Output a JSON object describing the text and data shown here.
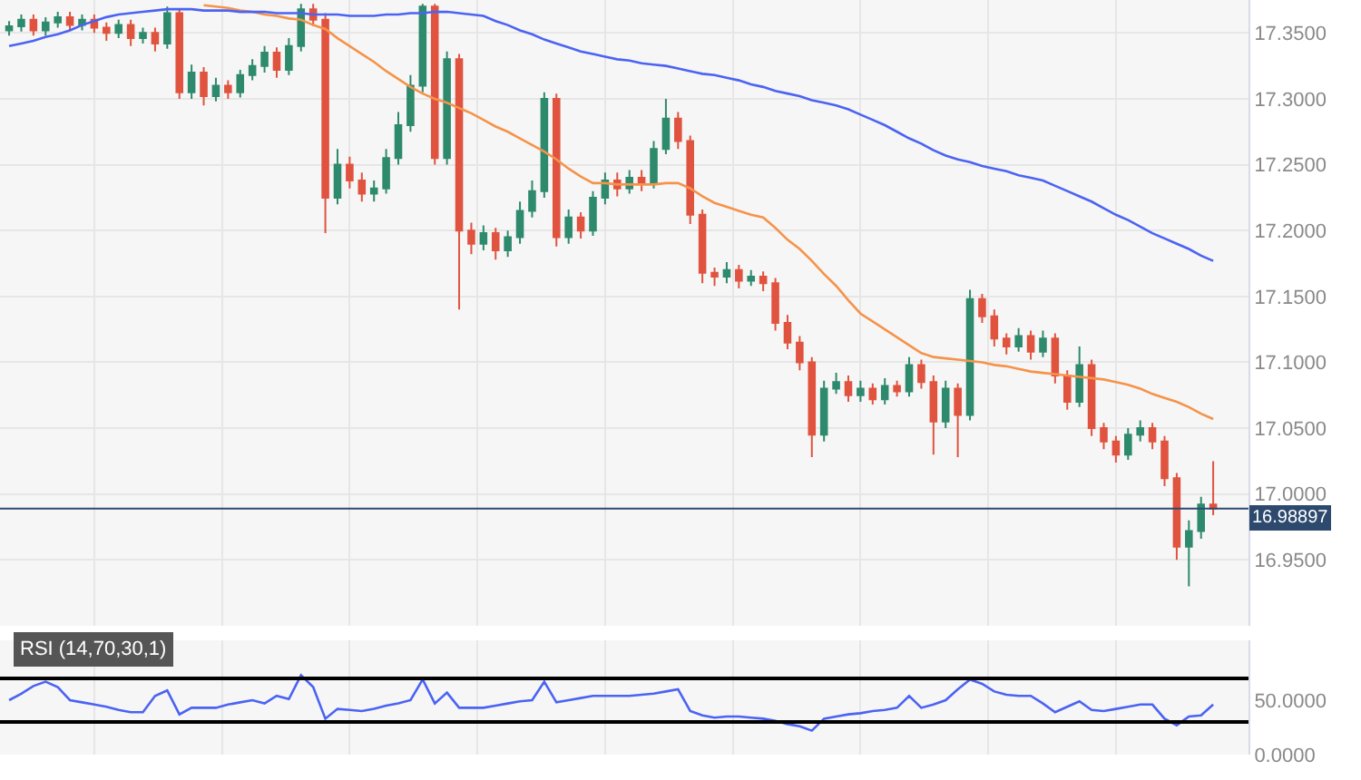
{
  "chart_data": [
    {
      "type": "candlestick",
      "categories": [
        null,
        null,
        null,
        null,
        null,
        null,
        null,
        null,
        null,
        null,
        null,
        null,
        null,
        null,
        null,
        null,
        null,
        null,
        null,
        null,
        null,
        null,
        null,
        null,
        null,
        null,
        null,
        null,
        null,
        null,
        null,
        null,
        null,
        null,
        null,
        null,
        null,
        null,
        null,
        null,
        null,
        null,
        null,
        null,
        null,
        null,
        null,
        null,
        null,
        null,
        null,
        null,
        null,
        null,
        null,
        null,
        null,
        null,
        null,
        null,
        null,
        null,
        null,
        null,
        null,
        null,
        null,
        null,
        null,
        null,
        null,
        null,
        null,
        null,
        null,
        null,
        null,
        null,
        null,
        null,
        null,
        null,
        null,
        null,
        null,
        null,
        null,
        null,
        null,
        null,
        null,
        null,
        null,
        null,
        null,
        null,
        null,
        null,
        null,
        null
      ],
      "ohlc": [
        [
          17.352,
          17.359,
          17.348,
          17.355
        ],
        [
          17.355,
          17.364,
          17.351,
          17.36
        ],
        [
          17.36,
          17.364,
          17.348,
          17.352
        ],
        [
          17.352,
          17.362,
          17.348,
          17.358
        ],
        [
          17.358,
          17.366,
          17.354,
          17.362
        ],
        [
          17.362,
          17.366,
          17.352,
          17.356
        ],
        [
          17.356,
          17.364,
          17.352,
          17.36
        ],
        [
          17.36,
          17.364,
          17.35,
          17.354
        ],
        [
          17.354,
          17.358,
          17.344,
          17.35
        ],
        [
          17.35,
          17.36,
          17.346,
          17.356
        ],
        [
          17.356,
          17.36,
          17.34,
          17.346
        ],
        [
          17.346,
          17.354,
          17.342,
          17.35
        ],
        [
          17.35,
          17.354,
          17.336,
          17.342
        ],
        [
          17.342,
          17.37,
          17.338,
          17.365
        ],
        [
          17.365,
          17.368,
          17.3,
          17.305
        ],
        [
          17.305,
          17.326,
          17.3,
          17.32
        ],
        [
          17.32,
          17.324,
          17.295,
          17.302
        ],
        [
          17.302,
          17.316,
          17.298,
          17.31
        ],
        [
          17.31,
          17.314,
          17.3,
          17.305
        ],
        [
          17.305,
          17.322,
          17.301,
          17.318
        ],
        [
          17.318,
          17.33,
          17.314,
          17.325
        ],
        [
          17.325,
          17.34,
          17.32,
          17.335
        ],
        [
          17.335,
          17.339,
          17.316,
          17.322
        ],
        [
          17.322,
          17.346,
          17.318,
          17.34
        ],
        [
          17.34,
          17.372,
          17.336,
          17.368
        ],
        [
          17.368,
          17.372,
          17.355,
          17.36
        ],
        [
          17.36,
          17.365,
          17.198,
          17.225
        ],
        [
          17.225,
          17.262,
          17.22,
          17.25
        ],
        [
          17.25,
          17.256,
          17.232,
          17.238
        ],
        [
          17.238,
          17.244,
          17.222,
          17.228
        ],
        [
          17.228,
          17.238,
          17.222,
          17.232
        ],
        [
          17.232,
          17.262,
          17.228,
          17.255
        ],
        [
          17.255,
          17.29,
          17.25,
          17.28
        ],
        [
          17.28,
          17.318,
          17.275,
          17.31
        ],
        [
          17.31,
          17.372,
          17.305,
          17.37
        ],
        [
          17.37,
          17.372,
          17.25,
          17.255
        ],
        [
          17.255,
          17.336,
          17.25,
          17.33
        ],
        [
          17.33,
          17.334,
          17.14,
          17.2
        ],
        [
          17.2,
          17.206,
          17.182,
          17.19
        ],
        [
          17.19,
          17.204,
          17.185,
          17.198
        ],
        [
          17.198,
          17.202,
          17.178,
          17.185
        ],
        [
          17.185,
          17.2,
          17.18,
          17.195
        ],
        [
          17.195,
          17.222,
          17.19,
          17.215
        ],
        [
          17.215,
          17.238,
          17.21,
          17.23
        ],
        [
          17.23,
          17.305,
          17.225,
          17.3
        ],
        [
          17.3,
          17.304,
          17.188,
          17.195
        ],
        [
          17.195,
          17.216,
          17.19,
          17.21
        ],
        [
          17.21,
          17.214,
          17.194,
          17.2
        ],
        [
          17.2,
          17.23,
          17.196,
          17.225
        ],
        [
          17.225,
          17.244,
          17.22,
          17.238
        ],
        [
          17.238,
          17.244,
          17.226,
          17.232
        ],
        [
          17.232,
          17.246,
          17.228,
          17.24
        ],
        [
          17.24,
          17.246,
          17.23,
          17.236
        ],
        [
          17.236,
          17.268,
          17.232,
          17.262
        ],
        [
          17.262,
          17.3,
          17.258,
          17.285
        ],
        [
          17.285,
          17.29,
          17.262,
          17.268
        ],
        [
          17.268,
          17.272,
          17.205,
          17.212
        ],
        [
          17.212,
          17.216,
          17.16,
          17.168
        ],
        [
          17.168,
          17.172,
          17.158,
          17.165
        ],
        [
          17.165,
          17.176,
          17.16,
          17.17
        ],
        [
          17.17,
          17.174,
          17.156,
          17.162
        ],
        [
          17.162,
          17.17,
          17.158,
          17.165
        ],
        [
          17.165,
          17.169,
          17.154,
          17.16
        ],
        [
          17.16,
          17.164,
          17.124,
          17.13
        ],
        [
          17.13,
          17.136,
          17.11,
          17.115
        ],
        [
          17.115,
          17.12,
          17.094,
          17.1
        ],
        [
          17.1,
          17.104,
          17.028,
          17.045
        ],
        [
          17.045,
          17.086,
          17.04,
          17.08
        ],
        [
          17.08,
          17.092,
          17.076,
          17.085
        ],
        [
          17.085,
          17.09,
          17.07,
          17.075
        ],
        [
          17.075,
          17.086,
          17.07,
          17.08
        ],
        [
          17.08,
          17.084,
          17.068,
          17.072
        ],
        [
          17.072,
          17.088,
          17.068,
          17.082
        ],
        [
          17.082,
          17.086,
          17.074,
          17.078
        ],
        [
          17.078,
          17.104,
          17.074,
          17.098
        ],
        [
          17.098,
          17.102,
          17.08,
          17.085
        ],
        [
          17.085,
          17.09,
          17.03,
          17.055
        ],
        [
          17.055,
          17.086,
          17.05,
          17.08
        ],
        [
          17.08,
          17.084,
          17.028,
          17.06
        ],
        [
          17.06,
          17.155,
          17.056,
          17.148
        ],
        [
          17.148,
          17.152,
          17.13,
          17.135
        ],
        [
          17.135,
          17.14,
          17.112,
          17.118
        ],
        [
          17.118,
          17.122,
          17.106,
          17.112
        ],
        [
          17.112,
          17.126,
          17.108,
          17.12
        ],
        [
          17.12,
          17.124,
          17.102,
          17.108
        ],
        [
          17.108,
          17.124,
          17.104,
          17.118
        ],
        [
          17.118,
          17.122,
          17.084,
          17.09
        ],
        [
          17.09,
          17.094,
          17.064,
          17.07
        ],
        [
          17.07,
          17.112,
          17.066,
          17.098
        ],
        [
          17.098,
          17.102,
          17.044,
          17.05
        ],
        [
          17.05,
          17.054,
          17.034,
          17.04
        ],
        [
          17.04,
          17.044,
          17.024,
          17.03
        ],
        [
          17.03,
          17.05,
          17.026,
          17.045
        ],
        [
          17.045,
          17.056,
          17.04,
          17.05
        ],
        [
          17.05,
          17.054,
          17.034,
          17.04
        ],
        [
          17.04,
          17.044,
          17.006,
          17.012
        ],
        [
          17.012,
          17.016,
          16.95,
          16.96
        ],
        [
          16.96,
          16.98,
          16.93,
          16.972
        ],
        [
          16.972,
          16.998,
          16.966,
          16.992
        ],
        [
          16.992,
          17.025,
          16.984,
          16.989
        ]
      ],
      "series": [
        {
          "type": "line",
          "color": "#f5934a",
          "values": [
            null,
            null,
            null,
            null,
            null,
            null,
            null,
            null,
            null,
            null,
            null,
            null,
            null,
            null,
            null,
            null,
            17.371,
            17.37,
            17.369,
            17.367,
            17.366,
            17.364,
            17.363,
            17.361,
            17.36,
            17.356,
            17.353,
            17.346,
            17.34,
            17.334,
            17.328,
            17.321,
            17.315,
            17.309,
            17.304,
            17.3,
            17.297,
            17.293,
            17.289,
            17.284,
            17.279,
            17.275,
            17.27,
            17.265,
            17.26,
            17.254,
            17.247,
            17.241,
            17.236,
            17.236,
            17.235,
            17.235,
            17.235,
            17.235,
            17.236,
            17.236,
            17.232,
            17.226,
            17.221,
            17.218,
            17.215,
            17.212,
            17.21,
            17.202,
            17.193,
            17.186,
            17.177,
            17.167,
            17.158,
            17.147,
            17.137,
            17.131,
            17.125,
            17.119,
            17.113,
            17.107,
            17.104,
            17.103,
            17.102,
            17.101,
            17.1,
            17.098,
            17.097,
            17.095,
            17.093,
            17.092,
            17.091,
            17.09,
            17.089,
            17.088,
            17.087,
            17.085,
            17.083,
            17.08,
            17.076,
            17.073,
            17.07,
            17.066,
            17.061,
            17.057
          ]
        },
        {
          "type": "line",
          "color": "#4b63f2",
          "values": [
            17.34,
            17.342,
            17.344,
            17.347,
            17.349,
            17.352,
            17.356,
            17.359,
            17.362,
            17.364,
            17.365,
            17.366,
            17.367,
            17.368,
            17.368,
            17.368,
            17.367,
            17.367,
            17.367,
            17.366,
            17.366,
            17.366,
            17.365,
            17.365,
            17.365,
            17.364,
            17.364,
            17.364,
            17.363,
            17.363,
            17.363,
            17.364,
            17.364,
            17.365,
            17.365,
            17.366,
            17.366,
            17.365,
            17.364,
            17.363,
            17.359,
            17.356,
            17.352,
            17.349,
            17.345,
            17.342,
            17.339,
            17.336,
            17.334,
            17.332,
            17.33,
            17.329,
            17.327,
            17.326,
            17.325,
            17.323,
            17.321,
            17.319,
            17.318,
            17.316,
            17.314,
            17.311,
            17.309,
            17.306,
            17.304,
            17.302,
            17.299,
            17.297,
            17.295,
            17.292,
            17.288,
            17.284,
            17.28,
            17.275,
            17.27,
            17.266,
            17.261,
            17.257,
            17.254,
            17.252,
            17.249,
            17.247,
            17.245,
            17.242,
            17.24,
            17.238,
            17.234,
            17.23,
            17.226,
            17.222,
            17.217,
            17.212,
            17.208,
            17.203,
            17.198,
            17.194,
            17.19,
            17.186,
            17.181,
            17.177
          ]
        }
      ],
      "ylim": [
        16.9,
        17.375
      ],
      "yticks": [
        {
          "value": 16.95,
          "label": "16.9500"
        },
        {
          "value": 17.0,
          "label": "17.0000"
        },
        {
          "value": 17.05,
          "label": "17.0500"
        },
        {
          "value": 17.1,
          "label": "17.1000"
        },
        {
          "value": 17.15,
          "label": "17.1500"
        },
        {
          "value": 17.2,
          "label": "17.2000"
        },
        {
          "value": 17.25,
          "label": "17.2500"
        },
        {
          "value": 17.3,
          "label": "17.3000"
        },
        {
          "value": 17.35,
          "label": "17.3500"
        }
      ],
      "ref_lines": [
        {
          "axis": "y",
          "value": 16.98897,
          "label": "16.98897",
          "color": "#2d4a6e"
        }
      ],
      "grid": true,
      "tick_labels": "y"
    },
    {
      "type": "line",
      "title": "RSI (14,70,30,1)",
      "categories": [
        null,
        null,
        null,
        null,
        null,
        null,
        null,
        null,
        null,
        null,
        null,
        null,
        null,
        null,
        null,
        null,
        null,
        null,
        null,
        null,
        null,
        null,
        null,
        null,
        null,
        null,
        null,
        null,
        null,
        null,
        null,
        null,
        null,
        null,
        null,
        null,
        null,
        null,
        null,
        null,
        null,
        null,
        null,
        null,
        null,
        null,
        null,
        null,
        null,
        null,
        null,
        null,
        null,
        null,
        null,
        null,
        null,
        null,
        null,
        null,
        null,
        null,
        null,
        null,
        null,
        null,
        null,
        null,
        null,
        null,
        null,
        null,
        null,
        null,
        null,
        null,
        null,
        null,
        null,
        null,
        null,
        null,
        null,
        null,
        null,
        null,
        null,
        null,
        null,
        null,
        null,
        null,
        null,
        null,
        null,
        null,
        null,
        null,
        null,
        null
      ],
      "series": [
        {
          "color": "#4b63f2",
          "values": [
            50,
            56,
            63,
            67,
            62,
            50,
            48,
            46,
            44,
            41,
            39,
            39,
            54,
            59,
            37,
            43,
            43,
            43,
            46,
            48,
            50,
            47,
            54,
            51,
            73,
            62,
            33,
            42,
            41,
            40,
            42,
            45,
            47,
            50,
            69,
            47,
            57,
            43,
            43,
            43,
            45,
            47,
            49,
            50,
            67,
            48,
            50,
            52,
            54,
            54,
            54,
            54,
            55,
            56,
            58,
            60,
            40,
            36,
            34,
            35,
            35,
            34,
            33,
            31,
            28,
            26,
            22,
            33,
            35,
            37,
            38,
            40,
            41,
            43,
            54,
            43,
            46,
            50,
            60,
            69,
            65,
            58,
            55,
            54,
            54,
            47,
            39,
            44,
            49,
            41,
            40,
            42,
            44,
            46,
            46,
            33,
            27,
            35,
            36,
            46
          ]
        }
      ],
      "ylim": [
        0,
        105
      ],
      "yticks": [
        {
          "value": 50,
          "label": "50.0000"
        },
        {
          "value": 0,
          "label": "0.0000"
        }
      ],
      "ref_lines": [
        {
          "axis": "y",
          "value": 70,
          "color": "#000000"
        },
        {
          "axis": "y",
          "value": 30,
          "color": "#000000"
        }
      ],
      "grid": "x",
      "tick_labels": "y"
    }
  ]
}
